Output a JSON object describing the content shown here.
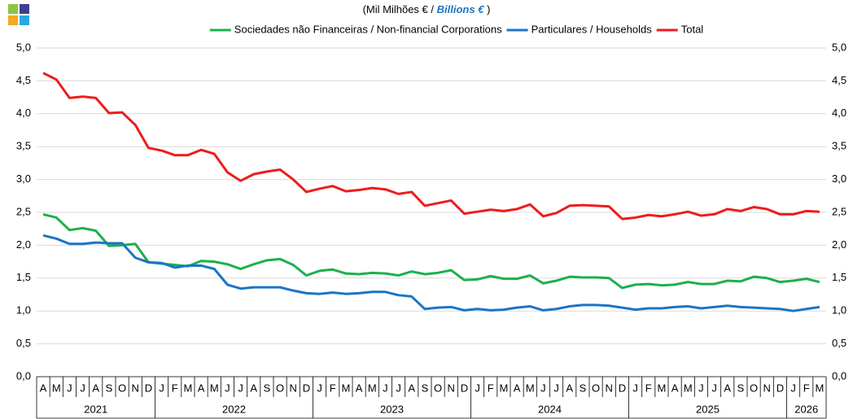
{
  "chart_data": {
    "type": "line",
    "title": {
      "pt": "(Mil Milhões  € /",
      "en": "Billions €",
      "close": ")"
    },
    "categories": [
      "A",
      "M",
      "J",
      "J",
      "A",
      "S",
      "O",
      "N",
      "D",
      "J",
      "F",
      "M",
      "A",
      "M",
      "J",
      "J",
      "A",
      "S",
      "O",
      "N",
      "D",
      "J",
      "F",
      "M",
      "A",
      "M",
      "J",
      "J",
      "A",
      "S",
      "O",
      "N",
      "D",
      "J",
      "F",
      "M",
      "A",
      "M",
      "J",
      "J",
      "A",
      "S",
      "O",
      "N",
      "D",
      "J",
      "F",
      "M",
      "A",
      "M",
      "J",
      "J",
      "A",
      "S",
      "O",
      "N",
      "D",
      "J",
      "F",
      "M"
    ],
    "years": [
      "2021",
      "2022",
      "2023",
      "2024",
      "2025",
      "2026"
    ],
    "series": [
      {
        "name": "Sociedades não Financeiras / Non-financial Corporations",
        "color": "#1db04b",
        "values": [
          2.47,
          2.42,
          2.23,
          2.26,
          2.22,
          1.99,
          2.0,
          2.02,
          1.74,
          1.72,
          1.7,
          1.68,
          1.76,
          1.75,
          1.71,
          1.64,
          1.71,
          1.77,
          1.79,
          1.7,
          1.54,
          1.61,
          1.63,
          1.57,
          1.56,
          1.58,
          1.57,
          1.54,
          1.6,
          1.56,
          1.58,
          1.62,
          1.47,
          1.48,
          1.53,
          1.49,
          1.49,
          1.54,
          1.42,
          1.46,
          1.52,
          1.51,
          1.51,
          1.5,
          1.35,
          1.4,
          1.41,
          1.39,
          1.4,
          1.44,
          1.41,
          1.41,
          1.46,
          1.45,
          1.52,
          1.5,
          1.44,
          1.46,
          1.49,
          1.44
        ]
      },
      {
        "name": "Particulares / Households",
        "color": "#1b75c4",
        "values": [
          2.15,
          2.1,
          2.02,
          2.02,
          2.04,
          2.03,
          2.03,
          1.81,
          1.74,
          1.73,
          1.66,
          1.69,
          1.69,
          1.64,
          1.4,
          1.34,
          1.36,
          1.36,
          1.36,
          1.31,
          1.27,
          1.26,
          1.28,
          1.26,
          1.27,
          1.29,
          1.29,
          1.24,
          1.22,
          1.03,
          1.05,
          1.06,
          1.01,
          1.03,
          1.01,
          1.02,
          1.05,
          1.07,
          1.01,
          1.03,
          1.07,
          1.09,
          1.09,
          1.08,
          1.05,
          1.02,
          1.04,
          1.04,
          1.06,
          1.07,
          1.04,
          1.06,
          1.08,
          1.06,
          1.05,
          1.04,
          1.03,
          1.0,
          1.03,
          1.06
        ]
      },
      {
        "name": "Total",
        "color": "#ee1c1c",
        "values": [
          4.62,
          4.52,
          4.24,
          4.26,
          4.24,
          4.01,
          4.02,
          3.83,
          3.48,
          3.44,
          3.37,
          3.37,
          3.45,
          3.39,
          3.11,
          2.98,
          3.08,
          3.12,
          3.15,
          3.0,
          2.81,
          2.86,
          2.9,
          2.82,
          2.84,
          2.87,
          2.85,
          2.78,
          2.81,
          2.6,
          2.64,
          2.68,
          2.48,
          2.51,
          2.54,
          2.52,
          2.55,
          2.62,
          2.44,
          2.49,
          2.6,
          2.61,
          2.6,
          2.59,
          2.4,
          2.42,
          2.46,
          2.44,
          2.47,
          2.51,
          2.45,
          2.47,
          2.55,
          2.52,
          2.58,
          2.55,
          2.47,
          2.47,
          2.52,
          2.51
        ]
      }
    ],
    "ylim": [
      0,
      5
    ],
    "yticks": [
      {
        "value": 0,
        "label": "0,0"
      },
      {
        "value": 0.5,
        "label": "0,5"
      },
      {
        "value": 1,
        "label": "1,0"
      },
      {
        "value": 1.5,
        "label": "1,5"
      },
      {
        "value": 2,
        "label": "2,0"
      },
      {
        "value": 2.5,
        "label": "2,5"
      },
      {
        "value": 3,
        "label": "3,0"
      },
      {
        "value": 3.5,
        "label": "3,5"
      },
      {
        "value": 4,
        "label": "4,0"
      },
      {
        "value": 4.5,
        "label": "4,5"
      },
      {
        "value": 5,
        "label": "5,0"
      }
    ],
    "grid": true
  }
}
